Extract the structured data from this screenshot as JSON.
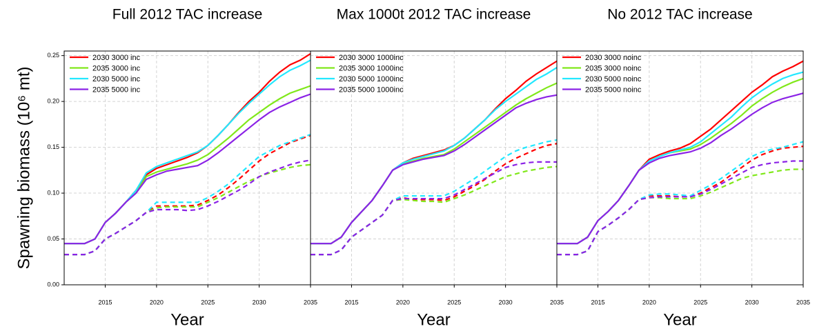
{
  "chart_data": [
    {
      "type": "line",
      "title": "Full 2012 TAC increase",
      "xlabel": "Year",
      "ylabel": "Spawning biomass (10⁶ mt)",
      "x": [
        2011,
        2012,
        2013,
        2014,
        2015,
        2016,
        2017,
        2018,
        2019,
        2020,
        2021,
        2022,
        2023,
        2024,
        2025,
        2026,
        2027,
        2028,
        2029,
        2030,
        2031,
        2032,
        2033,
        2034,
        2035
      ],
      "xlim": [
        2011,
        2035
      ],
      "xticks": [
        2015,
        2020,
        2025,
        2030,
        2035
      ],
      "ylim": [
        0,
        0.255
      ],
      "yticks": [
        {
          "value": 0,
          "label": "0.00"
        },
        {
          "value": 0.05,
          "label": "0.05"
        },
        {
          "value": 0.1,
          "label": "0.10"
        },
        {
          "value": 0.15,
          "label": "0.15"
        },
        {
          "value": 0.2,
          "label": "0.20"
        },
        {
          "value": 0.25,
          "label": "0.25"
        }
      ],
      "grid": true,
      "legend": "top-left",
      "series": [
        {
          "name": "2030 3000 inc",
          "color": "#ff0000",
          "values": [
            0.045,
            0.045,
            0.045,
            0.05,
            0.068,
            0.078,
            0.09,
            0.103,
            0.12,
            0.127,
            0.131,
            0.135,
            0.139,
            0.144,
            0.152,
            0.163,
            0.175,
            0.188,
            0.2,
            0.21,
            0.222,
            0.232,
            0.24,
            0.245,
            0.252
          ],
          "low_values": [
            0.033,
            0.033,
            0.033,
            0.037,
            0.05,
            0.056,
            0.063,
            0.07,
            0.079,
            0.086,
            0.086,
            0.086,
            0.086,
            0.087,
            0.092,
            0.098,
            0.106,
            0.115,
            0.125,
            0.135,
            0.143,
            0.149,
            0.155,
            0.159,
            0.163
          ]
        },
        {
          "name": "2035 3000 inc",
          "color": "#80e81a",
          "values": [
            0.045,
            0.045,
            0.045,
            0.05,
            0.068,
            0.078,
            0.09,
            0.1,
            0.118,
            0.123,
            0.126,
            0.129,
            0.132,
            0.136,
            0.142,
            0.151,
            0.16,
            0.17,
            0.18,
            0.188,
            0.196,
            0.203,
            0.209,
            0.213,
            0.217
          ],
          "low_values": [
            0.033,
            0.033,
            0.033,
            0.037,
            0.05,
            0.056,
            0.063,
            0.07,
            0.079,
            0.084,
            0.085,
            0.085,
            0.085,
            0.085,
            0.09,
            0.095,
            0.101,
            0.107,
            0.113,
            0.118,
            0.122,
            0.125,
            0.128,
            0.13,
            0.131
          ]
        },
        {
          "name": "2030 5000 inc",
          "color": "#22e8ff",
          "values": [
            0.045,
            0.045,
            0.045,
            0.05,
            0.068,
            0.078,
            0.09,
            0.103,
            0.122,
            0.129,
            0.133,
            0.137,
            0.141,
            0.145,
            0.152,
            0.163,
            0.175,
            0.187,
            0.198,
            0.208,
            0.218,
            0.227,
            0.234,
            0.239,
            0.245
          ],
          "low_values": [
            0.033,
            0.033,
            0.033,
            0.037,
            0.05,
            0.056,
            0.063,
            0.07,
            0.079,
            0.09,
            0.09,
            0.09,
            0.09,
            0.09,
            0.095,
            0.102,
            0.11,
            0.12,
            0.13,
            0.14,
            0.146,
            0.152,
            0.156,
            0.16,
            0.164
          ]
        },
        {
          "name": "2035 5000 inc",
          "color": "#8b22e6",
          "values": [
            0.045,
            0.045,
            0.045,
            0.05,
            0.068,
            0.078,
            0.09,
            0.1,
            0.115,
            0.12,
            0.124,
            0.126,
            0.128,
            0.13,
            0.136,
            0.144,
            0.153,
            0.162,
            0.171,
            0.18,
            0.188,
            0.194,
            0.199,
            0.204,
            0.208
          ],
          "low_values": [
            0.033,
            0.033,
            0.033,
            0.037,
            0.05,
            0.056,
            0.063,
            0.07,
            0.079,
            0.082,
            0.082,
            0.082,
            0.081,
            0.082,
            0.086,
            0.091,
            0.097,
            0.103,
            0.11,
            0.118,
            0.123,
            0.127,
            0.131,
            0.134,
            0.136
          ]
        }
      ]
    },
    {
      "type": "line",
      "title": "Max 1000t 2012 TAC increase",
      "xlabel": "Year",
      "x": [
        2011,
        2012,
        2013,
        2014,
        2015,
        2016,
        2017,
        2018,
        2019,
        2020,
        2021,
        2022,
        2023,
        2024,
        2025,
        2026,
        2027,
        2028,
        2029,
        2030,
        2031,
        2032,
        2033,
        2034,
        2035
      ],
      "xlim": [
        2011,
        2035
      ],
      "xticks": [
        2015,
        2020,
        2025,
        2030,
        2035
      ],
      "ylim": [
        0,
        0.255
      ],
      "yticks": [
        0,
        0.05,
        0.1,
        0.15,
        0.2,
        0.25
      ],
      "grid": true,
      "legend": "top-left",
      "series": [
        {
          "name": "2030 3000 1000inc",
          "color": "#ff0000",
          "values": [
            0.045,
            0.045,
            0.045,
            0.052,
            0.068,
            0.08,
            0.092,
            0.108,
            0.125,
            0.133,
            0.138,
            0.141,
            0.144,
            0.147,
            0.152,
            0.16,
            0.17,
            0.18,
            0.192,
            0.203,
            0.212,
            0.222,
            0.23,
            0.237,
            0.244
          ],
          "low_values": [
            0.033,
            0.033,
            0.033,
            0.038,
            0.052,
            0.06,
            0.068,
            0.076,
            0.092,
            0.095,
            0.093,
            0.093,
            0.093,
            0.092,
            0.096,
            0.102,
            0.108,
            0.115,
            0.124,
            0.132,
            0.138,
            0.143,
            0.148,
            0.152,
            0.154
          ]
        },
        {
          "name": "2035 3000 1000inc",
          "color": "#80e81a",
          "values": [
            0.045,
            0.045,
            0.045,
            0.052,
            0.068,
            0.08,
            0.092,
            0.108,
            0.125,
            0.132,
            0.135,
            0.138,
            0.14,
            0.142,
            0.148,
            0.156,
            0.164,
            0.172,
            0.18,
            0.188,
            0.196,
            0.203,
            0.209,
            0.215,
            0.22
          ],
          "low_values": [
            0.033,
            0.033,
            0.033,
            0.038,
            0.052,
            0.06,
            0.068,
            0.076,
            0.092,
            0.093,
            0.092,
            0.091,
            0.091,
            0.09,
            0.094,
            0.098,
            0.103,
            0.108,
            0.113,
            0.118,
            0.121,
            0.124,
            0.126,
            0.128,
            0.129
          ]
        },
        {
          "name": "2030 5000 1000inc",
          "color": "#22e8ff",
          "values": [
            0.045,
            0.045,
            0.045,
            0.052,
            0.068,
            0.08,
            0.092,
            0.108,
            0.125,
            0.133,
            0.137,
            0.14,
            0.143,
            0.146,
            0.152,
            0.16,
            0.17,
            0.18,
            0.191,
            0.2,
            0.208,
            0.216,
            0.224,
            0.23,
            0.237
          ],
          "low_values": [
            0.033,
            0.033,
            0.033,
            0.038,
            0.052,
            0.06,
            0.068,
            0.076,
            0.092,
            0.097,
            0.097,
            0.097,
            0.097,
            0.097,
            0.102,
            0.109,
            0.116,
            0.124,
            0.132,
            0.14,
            0.146,
            0.15,
            0.153,
            0.156,
            0.158
          ]
        },
        {
          "name": "2035 5000 1000inc",
          "color": "#8b22e6",
          "values": [
            0.045,
            0.045,
            0.045,
            0.052,
            0.068,
            0.08,
            0.092,
            0.108,
            0.125,
            0.131,
            0.134,
            0.137,
            0.139,
            0.141,
            0.146,
            0.153,
            0.161,
            0.169,
            0.177,
            0.185,
            0.193,
            0.198,
            0.202,
            0.205,
            0.207
          ],
          "low_values": [
            0.033,
            0.033,
            0.033,
            0.038,
            0.052,
            0.06,
            0.068,
            0.076,
            0.092,
            0.094,
            0.094,
            0.094,
            0.094,
            0.094,
            0.098,
            0.104,
            0.11,
            0.116,
            0.122,
            0.128,
            0.131,
            0.133,
            0.134,
            0.134,
            0.134
          ]
        }
      ]
    },
    {
      "type": "line",
      "title": "No 2012 TAC increase",
      "xlabel": "Year",
      "x": [
        2011,
        2012,
        2013,
        2014,
        2015,
        2016,
        2017,
        2018,
        2019,
        2020,
        2021,
        2022,
        2023,
        2024,
        2025,
        2026,
        2027,
        2028,
        2029,
        2030,
        2031,
        2032,
        2033,
        2034,
        2035
      ],
      "xlim": [
        2011,
        2035
      ],
      "xticks": [
        2015,
        2020,
        2025,
        2030,
        2035
      ],
      "ylim": [
        0,
        0.255
      ],
      "yticks": [
        0,
        0.05,
        0.1,
        0.15,
        0.2,
        0.25
      ],
      "grid": true,
      "legend": "top-left",
      "series": [
        {
          "name": "2030 3000 noinc",
          "color": "#ff0000",
          "values": [
            0.045,
            0.045,
            0.045,
            0.052,
            0.07,
            0.08,
            0.092,
            0.108,
            0.125,
            0.137,
            0.142,
            0.146,
            0.149,
            0.154,
            0.162,
            0.17,
            0.18,
            0.19,
            0.2,
            0.21,
            0.218,
            0.227,
            0.233,
            0.238,
            0.244
          ],
          "low_values": [
            0.033,
            0.033,
            0.033,
            0.037,
            0.058,
            0.065,
            0.073,
            0.082,
            0.093,
            0.097,
            0.097,
            0.097,
            0.096,
            0.096,
            0.1,
            0.106,
            0.112,
            0.12,
            0.128,
            0.136,
            0.142,
            0.146,
            0.149,
            0.15,
            0.151
          ]
        },
        {
          "name": "2035 3000 noinc",
          "color": "#80e81a",
          "values": [
            0.045,
            0.045,
            0.045,
            0.052,
            0.07,
            0.08,
            0.092,
            0.108,
            0.125,
            0.135,
            0.14,
            0.144,
            0.146,
            0.148,
            0.153,
            0.16,
            0.168,
            0.176,
            0.185,
            0.195,
            0.203,
            0.21,
            0.216,
            0.221,
            0.225
          ],
          "low_values": [
            0.033,
            0.033,
            0.033,
            0.037,
            0.058,
            0.065,
            0.073,
            0.082,
            0.093,
            0.095,
            0.095,
            0.094,
            0.094,
            0.094,
            0.097,
            0.101,
            0.106,
            0.111,
            0.116,
            0.119,
            0.121,
            0.123,
            0.125,
            0.126,
            0.126
          ]
        },
        {
          "name": "2030 5000 noinc",
          "color": "#22e8ff",
          "values": [
            0.045,
            0.045,
            0.045,
            0.052,
            0.07,
            0.08,
            0.092,
            0.108,
            0.125,
            0.135,
            0.14,
            0.144,
            0.147,
            0.15,
            0.156,
            0.165,
            0.174,
            0.183,
            0.194,
            0.204,
            0.212,
            0.219,
            0.225,
            0.229,
            0.232
          ],
          "low_values": [
            0.033,
            0.033,
            0.033,
            0.037,
            0.058,
            0.065,
            0.073,
            0.082,
            0.093,
            0.098,
            0.099,
            0.099,
            0.098,
            0.097,
            0.103,
            0.109,
            0.116,
            0.124,
            0.132,
            0.14,
            0.145,
            0.148,
            0.15,
            0.153,
            0.156
          ]
        },
        {
          "name": "2035 5000 noinc",
          "color": "#8b22e6",
          "values": [
            0.045,
            0.045,
            0.045,
            0.052,
            0.07,
            0.08,
            0.092,
            0.108,
            0.125,
            0.133,
            0.138,
            0.141,
            0.143,
            0.145,
            0.149,
            0.155,
            0.163,
            0.17,
            0.178,
            0.186,
            0.193,
            0.199,
            0.203,
            0.206,
            0.209
          ],
          "low_values": [
            0.033,
            0.033,
            0.033,
            0.037,
            0.058,
            0.065,
            0.073,
            0.082,
            0.093,
            0.095,
            0.096,
            0.096,
            0.096,
            0.096,
            0.099,
            0.104,
            0.11,
            0.116,
            0.122,
            0.128,
            0.131,
            0.133,
            0.134,
            0.135,
            0.135
          ]
        }
      ]
    }
  ]
}
